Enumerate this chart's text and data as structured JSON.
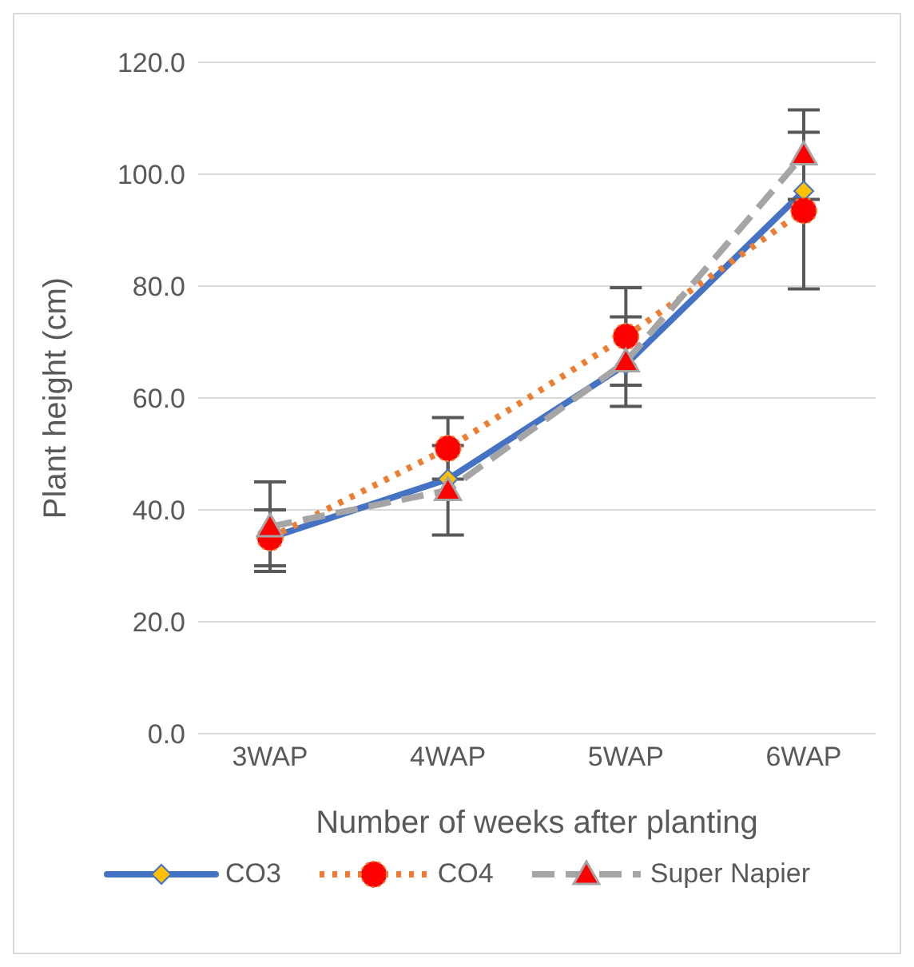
{
  "chart_data": {
    "type": "line",
    "xlabel": "Number of weeks after planting",
    "ylabel": "Plant height (cm)",
    "categories": [
      "3WAP",
      "4WAP",
      "5WAP",
      "6WAP"
    ],
    "series": [
      {
        "name": "CO3",
        "color": "#4472c4",
        "line_style": "solid",
        "marker": "diamond",
        "values": [
          35,
          45.5,
          66,
          97
        ]
      },
      {
        "name": "CO4",
        "color": "#ed7d31",
        "line_style": "dotted",
        "marker": "circle",
        "values": [
          35,
          51,
          71,
          93.5
        ],
        "errors": [
          5,
          5.5,
          8.7,
          14
        ]
      },
      {
        "name": "Super Napier",
        "color": "#a5a5a5",
        "line_style": "dashed",
        "marker": "triangle",
        "values": [
          37,
          43.5,
          66.5,
          103.5
        ],
        "errors": [
          8,
          8,
          8,
          8
        ]
      }
    ],
    "ylim": [
      0,
      120
    ],
    "yticks": [
      {
        "value": 0,
        "label": "0.0"
      },
      {
        "value": 20,
        "label": "20.0"
      },
      {
        "value": 40,
        "label": "40.0"
      },
      {
        "value": 60,
        "label": "60.0"
      },
      {
        "value": 80,
        "label": "80.0"
      },
      {
        "value": 100,
        "label": "100.0"
      },
      {
        "value": 120,
        "label": "120.0"
      }
    ],
    "grid": "y",
    "legend": "bottom"
  }
}
